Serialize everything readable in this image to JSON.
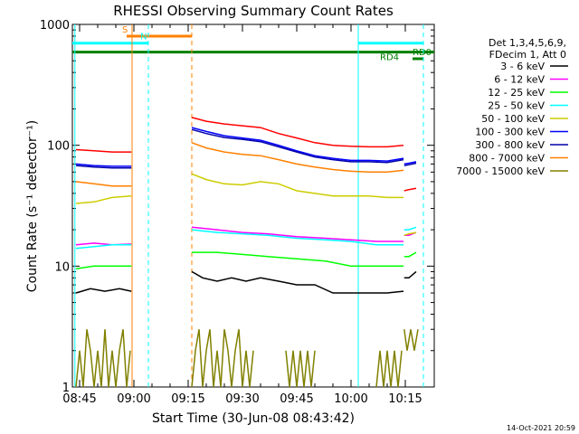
{
  "chart_data": {
    "type": "line",
    "title": "RHESSI Observing Summary Count Rates",
    "xlabel": "Start Time (30-Jun-08 08:43:42)",
    "ylabel": "Count Rate (s⁻¹ detector⁻¹)",
    "yscale": "log",
    "ylim": [
      1,
      1000
    ],
    "xlim_minutes": [
      -2,
      98
    ],
    "x_ticks": [
      "08:45",
      "09:00",
      "09:15",
      "09:30",
      "09:45",
      "10:00",
      "10:15"
    ],
    "y_ticks": [
      "1",
      "10",
      "100",
      "1000"
    ],
    "legend_header": [
      "Det 1,3,4,5,6,9,",
      "FDecim 1, Att 0"
    ],
    "legend_placement": "right",
    "series": [
      {
        "name": "3 - 6 keV",
        "color": "#000000",
        "segments": [
          {
            "x": [
              -1,
              3,
              7,
              11,
              14.3
            ],
            "y": [
              6,
              6.5,
              6.2,
              6.5,
              6.2
            ]
          },
          {
            "x": [
              31,
              34,
              38,
              42,
              46,
              50,
              55,
              60,
              65,
              70,
              75,
              80,
              85,
              89.5
            ],
            "y": [
              9,
              8,
              7.5,
              8,
              7.5,
              8,
              7.5,
              7,
              7,
              6,
              6,
              6,
              6,
              6.2
            ]
          },
          {
            "x": [
              89.7,
              91,
              93
            ],
            "y": [
              8,
              8,
              9
            ]
          }
        ]
      },
      {
        "name": "6 - 12 keV",
        "color": "#ff00ff",
        "segments": [
          {
            "x": [
              -1,
              4,
              9,
              14.3
            ],
            "y": [
              15,
              15.5,
              15,
              15.2
            ]
          },
          {
            "x": [
              31,
              38,
              45,
              52,
              60,
              68,
              75,
              82,
              89.5
            ],
            "y": [
              21,
              20,
              19,
              18.5,
              17.5,
              17,
              16.5,
              16,
              16
            ]
          },
          {
            "x": [
              89.7,
              91,
              93
            ],
            "y": [
              18,
              18,
              19
            ]
          }
        ]
      },
      {
        "name": "12 - 25 keV",
        "color": "#00ff00",
        "segments": [
          {
            "x": [
              -1,
              4,
              9,
              14.3
            ],
            "y": [
              9.5,
              10,
              10,
              10
            ]
          },
          {
            "x": [
              31,
              38,
              45,
              52,
              60,
              68,
              75,
              82,
              89.5
            ],
            "y": [
              13,
              13,
              12.5,
              12,
              11.5,
              11,
              10,
              10,
              10
            ]
          },
          {
            "x": [
              89.7,
              91,
              93
            ],
            "y": [
              12,
              12,
              13
            ]
          }
        ]
      },
      {
        "name": "25 - 50 keV",
        "color": "#00ffff",
        "segments": [
          {
            "x": [
              -1,
              4,
              9,
              14.3
            ],
            "y": [
              14,
              14.5,
              15,
              15
            ]
          },
          {
            "x": [
              31,
              38,
              45,
              52,
              60,
              68,
              75,
              82,
              89.5
            ],
            "y": [
              20,
              19,
              18.5,
              18,
              17,
              16.5,
              16,
              15,
              15
            ]
          },
          {
            "x": [
              89.7,
              91,
              93
            ],
            "y": [
              20,
              20,
              21
            ]
          }
        ]
      },
      {
        "name": "50 - 100 keV",
        "color": "#cccc00",
        "segments": [
          {
            "x": [
              -1,
              4,
              9,
              14.3
            ],
            "y": [
              33,
              34,
              37,
              38
            ]
          },
          {
            "x": [
              31,
              35,
              40,
              45,
              50,
              55,
              60,
              65,
              70,
              75,
              80,
              85,
              89.5
            ],
            "y": [
              58,
              52,
              48,
              47,
              50,
              48,
              42,
              40,
              38,
              38,
              38,
              37,
              37
            ]
          },
          {
            "x": [
              89.7,
              91,
              93
            ],
            "y": [
              18,
              18.5,
              19
            ]
          }
        ]
      },
      {
        "name": "100 - 300 keV",
        "color": "#0000ff",
        "segments": [
          {
            "x": [
              -1,
              4,
              9,
              14.3
            ],
            "y": [
              70,
              68,
              67,
              67
            ]
          },
          {
            "x": [
              31,
              35,
              40,
              45,
              50,
              55,
              60,
              65,
              70,
              75,
              80,
              85,
              89.5
            ],
            "y": [
              140,
              130,
              120,
              115,
              110,
              100,
              90,
              82,
              78,
              75,
              75,
              74,
              78
            ]
          },
          {
            "x": [
              89.7,
              91,
              93
            ],
            "y": [
              70,
              71,
              73
            ]
          }
        ]
      },
      {
        "name": "300 - 800 keV",
        "color": "#0000aa",
        "segments": [
          {
            "x": [
              -1,
              4,
              9,
              14.3
            ],
            "y": [
              68,
              66,
              65,
              65
            ]
          },
          {
            "x": [
              31,
              35,
              40,
              45,
              50,
              55,
              60,
              65,
              70,
              75,
              80,
              85,
              89.5
            ],
            "y": [
              135,
              125,
              116,
              112,
              107,
              97,
              88,
              80,
              76,
              73,
              73,
              72,
              76
            ]
          },
          {
            "x": [
              89.7,
              91,
              93
            ],
            "y": [
              68,
              69,
              71
            ]
          }
        ]
      },
      {
        "name": "800 - 7000 keV",
        "color": "#ff8000",
        "segments": [
          {
            "x": [
              -1,
              4,
              9,
              14.3
            ],
            "y": [
              50,
              48,
              46,
              46
            ]
          },
          {
            "x": [
              31,
              35,
              40,
              45,
              50,
              55,
              60,
              65,
              70,
              75,
              80,
              85,
              89.5
            ],
            "y": [
              105,
              95,
              88,
              84,
              82,
              76,
              70,
              66,
              63,
              61,
              60,
              60,
              62
            ]
          }
        ]
      },
      {
        "name": "7000 - 15000 keV",
        "color": "#808000",
        "segments": [
          {
            "x": [
              -1,
              0,
              1,
              2,
              3,
              4,
              5,
              6,
              7,
              8,
              9,
              10,
              11,
              12,
              13,
              14
            ],
            "y": [
              1,
              2,
              1,
              3,
              2,
              1,
              2,
              1,
              3,
              1,
              2,
              1,
              2,
              3,
              1,
              2
            ]
          },
          {
            "x": [
              31,
              32,
              33,
              34,
              35,
              36,
              37,
              38,
              39,
              40,
              41,
              42,
              43,
              44,
              45,
              46,
              47,
              48
            ],
            "y": [
              1,
              2,
              3,
              1,
              2,
              3,
              1,
              2,
              1,
              3,
              2,
              1,
              2,
              3,
              1,
              2,
              1,
              2
            ]
          },
          {
            "x": [
              57,
              58,
              59,
              60,
              61,
              62,
              63,
              64,
              65
            ],
            "y": [
              2,
              1,
              2,
              1,
              2,
              1,
              2,
              1,
              2
            ]
          },
          {
            "x": [
              82,
              83,
              84,
              85,
              86,
              87,
              88,
              89
            ],
            "y": [
              1,
              2,
              1,
              2,
              1,
              2,
              1,
              2
            ]
          },
          {
            "x": [
              89.7,
              90.5,
              91.5,
              92.5,
              93.5
            ],
            "y": [
              3,
              2,
              3,
              2,
              3
            ]
          }
        ]
      },
      {
        "name": "",
        "color": "#ff0000",
        "segments": [
          {
            "x": [
              -1,
              4,
              9,
              14.3
            ],
            "y": [
              92,
              90,
              88,
              88
            ]
          },
          {
            "x": [
              31,
              35,
              40,
              45,
              50,
              55,
              60,
              65,
              70,
              75,
              80,
              85,
              89.5
            ],
            "y": [
              170,
              158,
              150,
              145,
              140,
              125,
              115,
              105,
              100,
              98,
              97,
              97,
              100
            ]
          },
          {
            "x": [
              89.7,
              91,
              93
            ],
            "y": [
              42,
              43,
              44
            ]
          }
        ]
      }
    ],
    "flag_bars": [
      {
        "label": "S",
        "color": "#ff8000",
        "x_start": 13,
        "x_end": 31,
        "y": 800
      },
      {
        "label": "N",
        "color": "#00ffff",
        "x_start": -2,
        "x_end": 19,
        "y": 700
      },
      {
        "label": "",
        "color": "#00ffff",
        "x_start": 77,
        "x_end": 95,
        "y": 700
      },
      {
        "label": "RD4",
        "color": "#008000",
        "x_start": -2,
        "x_end": 98,
        "y": 590
      },
      {
        "label": "RD0",
        "color": "#008000",
        "x_start": 92,
        "x_end": 95,
        "y": 520
      }
    ],
    "vlines": [
      {
        "x": 14.5,
        "color": "#ff8000",
        "dashed": false
      },
      {
        "x": 31,
        "color": "#ff8000",
        "dashed": true
      },
      {
        "x": -1.3,
        "color": "#00ffff",
        "dashed": false
      },
      {
        "x": 19,
        "color": "#00ffff",
        "dashed": true
      },
      {
        "x": 77,
        "color": "#00ffff",
        "dashed": false
      },
      {
        "x": 95,
        "color": "#00ffff",
        "dashed": true
      }
    ],
    "footer_timestamp": "14-Oct-2021 20:59"
  }
}
